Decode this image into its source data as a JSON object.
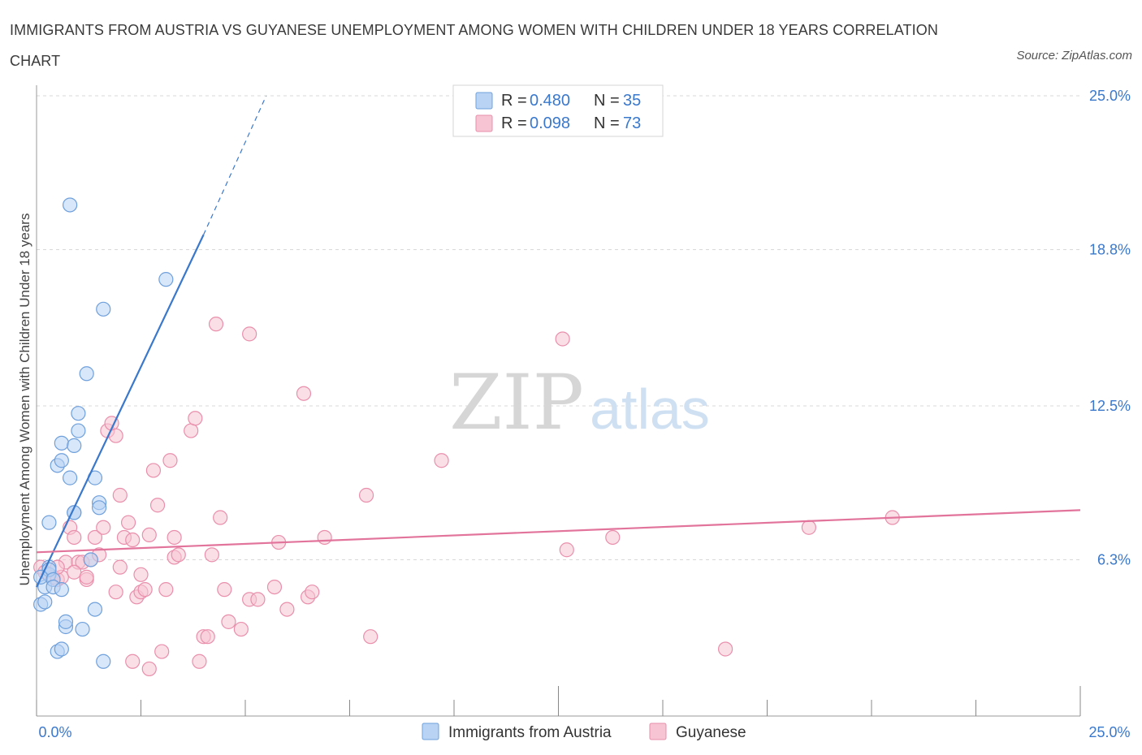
{
  "title": "IMMIGRANTS FROM AUSTRIA VS GUYANESE UNEMPLOYMENT AMONG WOMEN WITH CHILDREN UNDER 18 YEARS CORRELATION CHART",
  "source": "Source: ZipAtlas.com",
  "watermark": {
    "zip": "ZIP",
    "atlas": "atlas"
  },
  "colors": {
    "blue_fill": "#b8d3f4",
    "blue_stroke": "#6fa0dc",
    "blue_line": "#3a78cc",
    "pink_fill": "#f6c4d3",
    "pink_stroke": "#e98fac",
    "pink_line": "#e2739b",
    "value_text": "#3a78cc",
    "grid": "#d8d8d8"
  },
  "legend_top": [
    {
      "r_label": "R = ",
      "r_value": "0.480",
      "n_label": "N = ",
      "n_value": "35",
      "color": "blue"
    },
    {
      "r_label": "R = ",
      "r_value": "0.098",
      "n_label": "N = ",
      "n_value": "73",
      "color": "pink"
    }
  ],
  "legend_bottom": [
    {
      "label": "Immigrants from Austria",
      "color": "blue"
    },
    {
      "label": "Guyanese",
      "color": "pink"
    }
  ],
  "chart_data": {
    "type": "scatter",
    "title": "IMMIGRANTS FROM AUSTRIA VS GUYANESE UNEMPLOYMENT AMONG WOMEN WITH CHILDREN UNDER 18 YEARS CORRELATION CHART",
    "xlabel": "",
    "ylabel": "Unemployment Among Women with Children Under 18 years",
    "xlim": [
      0,
      25
    ],
    "ylim": [
      0,
      25
    ],
    "x_tick_labels": [
      {
        "value": 0,
        "label": "0.0%"
      },
      {
        "value": 25,
        "label": "25.0%"
      }
    ],
    "y_tick_labels": [
      {
        "value": 6.3,
        "label": "6.3%"
      },
      {
        "value": 12.5,
        "label": "12.5%"
      },
      {
        "value": 18.8,
        "label": "18.8%"
      },
      {
        "value": 25.0,
        "label": "25.0%"
      }
    ],
    "series": [
      {
        "name": "Immigrants from Austria",
        "color": "blue",
        "trend": {
          "x": [
            0.0,
            4.0
          ],
          "y": [
            5.2,
            19.4
          ],
          "dashed_to": [
            5.5,
            25.0
          ]
        },
        "points": [
          [
            0.1,
            4.5
          ],
          [
            0.2,
            4.6
          ],
          [
            0.2,
            5.2
          ],
          [
            0.3,
            5.7
          ],
          [
            0.3,
            6.0
          ],
          [
            0.3,
            5.9
          ],
          [
            0.1,
            5.6
          ],
          [
            0.4,
            5.5
          ],
          [
            0.4,
            5.2
          ],
          [
            0.5,
            2.6
          ],
          [
            0.6,
            2.7
          ],
          [
            0.6,
            11.0
          ],
          [
            0.5,
            10.1
          ],
          [
            0.6,
            10.3
          ],
          [
            0.7,
            3.6
          ],
          [
            0.7,
            3.8
          ],
          [
            0.8,
            9.6
          ],
          [
            0.8,
            20.6
          ],
          [
            0.9,
            8.2
          ],
          [
            0.9,
            8.2
          ],
          [
            0.9,
            10.9
          ],
          [
            1.0,
            11.5
          ],
          [
            1.0,
            12.2
          ],
          [
            1.1,
            3.5
          ],
          [
            1.2,
            13.8
          ],
          [
            1.3,
            6.3
          ],
          [
            1.4,
            9.6
          ],
          [
            1.4,
            4.3
          ],
          [
            1.5,
            8.6
          ],
          [
            1.5,
            8.4
          ],
          [
            1.6,
            2.2
          ],
          [
            1.6,
            16.4
          ],
          [
            3.1,
            17.6
          ],
          [
            0.3,
            7.8
          ],
          [
            0.6,
            5.1
          ]
        ]
      },
      {
        "name": "Guyanese",
        "color": "pink",
        "trend": {
          "x": [
            0.0,
            25.0
          ],
          "y": [
            6.6,
            8.3
          ]
        },
        "points": [
          [
            0.1,
            6.0
          ],
          [
            0.2,
            5.8
          ],
          [
            0.3,
            5.7
          ],
          [
            0.4,
            5.6
          ],
          [
            0.5,
            5.5
          ],
          [
            0.6,
            5.6
          ],
          [
            0.7,
            6.2
          ],
          [
            0.8,
            7.6
          ],
          [
            0.9,
            7.2
          ],
          [
            1.0,
            6.2
          ],
          [
            1.1,
            6.2
          ],
          [
            1.2,
            5.5
          ],
          [
            1.3,
            6.3
          ],
          [
            1.4,
            7.2
          ],
          [
            1.5,
            6.5
          ],
          [
            1.6,
            7.6
          ],
          [
            1.7,
            11.5
          ],
          [
            1.8,
            11.8
          ],
          [
            1.9,
            11.3
          ],
          [
            2.0,
            6.0
          ],
          [
            2.0,
            8.9
          ],
          [
            2.1,
            7.2
          ],
          [
            2.2,
            7.8
          ],
          [
            2.3,
            7.1
          ],
          [
            2.3,
            2.2
          ],
          [
            2.4,
            4.8
          ],
          [
            2.5,
            5.7
          ],
          [
            2.5,
            5.0
          ],
          [
            2.6,
            5.1
          ],
          [
            2.7,
            7.3
          ],
          [
            2.7,
            1.9
          ],
          [
            2.8,
            9.9
          ],
          [
            2.9,
            8.5
          ],
          [
            3.0,
            2.6
          ],
          [
            3.1,
            5.1
          ],
          [
            3.2,
            10.3
          ],
          [
            3.3,
            7.2
          ],
          [
            3.3,
            6.4
          ],
          [
            3.4,
            6.5
          ],
          [
            3.7,
            11.5
          ],
          [
            3.8,
            12.0
          ],
          [
            3.9,
            2.2
          ],
          [
            4.0,
            3.2
          ],
          [
            4.1,
            3.2
          ],
          [
            4.2,
            6.5
          ],
          [
            4.3,
            15.8
          ],
          [
            4.4,
            8.0
          ],
          [
            4.5,
            5.1
          ],
          [
            4.6,
            3.8
          ],
          [
            4.9,
            3.5
          ],
          [
            5.1,
            15.4
          ],
          [
            5.1,
            4.7
          ],
          [
            5.3,
            4.7
          ],
          [
            5.7,
            5.2
          ],
          [
            5.8,
            7.0
          ],
          [
            6.0,
            4.3
          ],
          [
            6.4,
            13.0
          ],
          [
            6.5,
            4.8
          ],
          [
            6.6,
            5.0
          ],
          [
            6.9,
            7.2
          ],
          [
            7.9,
            8.9
          ],
          [
            8.0,
            3.2
          ],
          [
            9.7,
            10.3
          ],
          [
            12.6,
            15.2
          ],
          [
            12.7,
            6.7
          ],
          [
            13.8,
            7.2
          ],
          [
            16.5,
            2.7
          ],
          [
            18.5,
            7.6
          ],
          [
            20.5,
            8.0
          ],
          [
            0.5,
            6.0
          ],
          [
            0.9,
            5.8
          ],
          [
            1.2,
            5.6
          ],
          [
            1.9,
            5.0
          ]
        ]
      }
    ]
  }
}
